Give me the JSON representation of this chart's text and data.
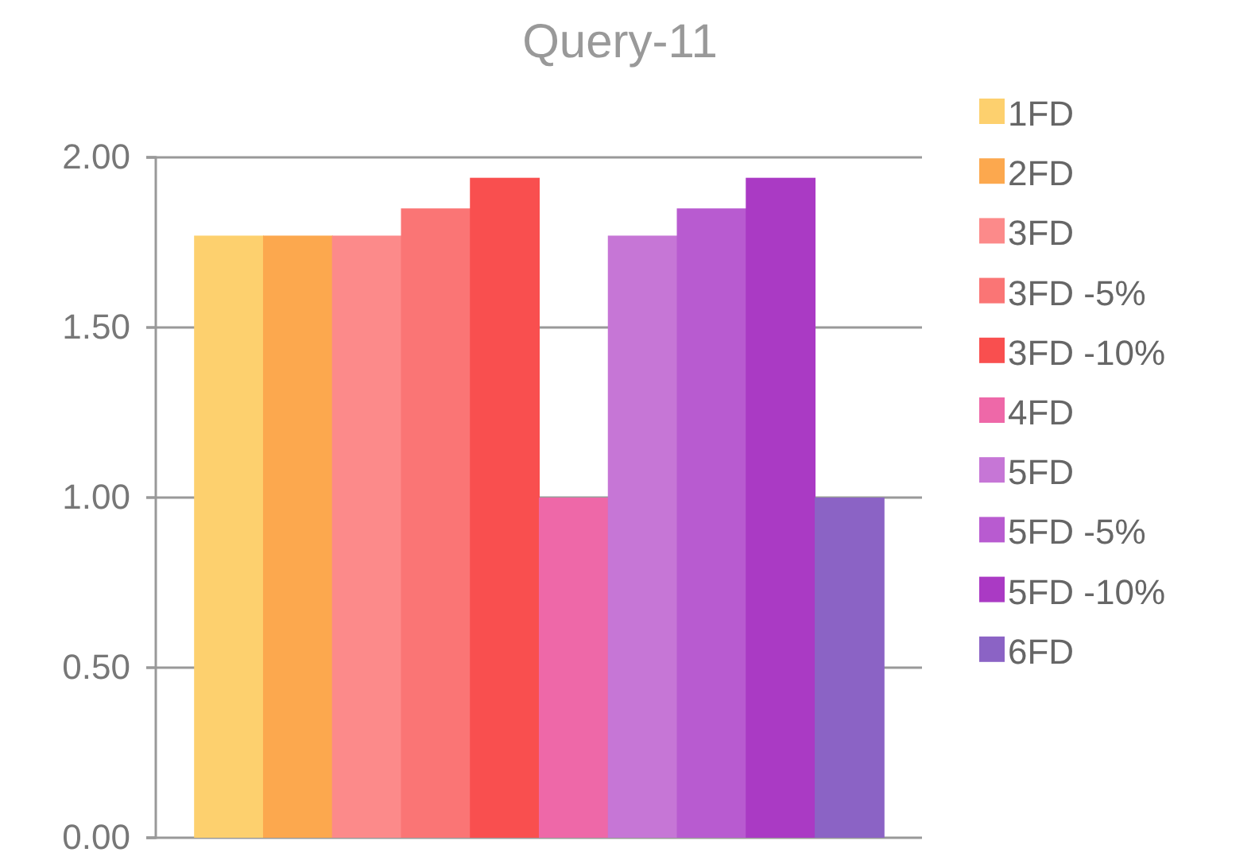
{
  "chart_data": {
    "type": "bar",
    "title": "Query-11",
    "categories": [
      null
    ],
    "series": [
      {
        "name": "1FD",
        "color": "#fdd06e",
        "values": [
          1.77
        ]
      },
      {
        "name": "2FD",
        "color": "#fca84e",
        "values": [
          1.77
        ]
      },
      {
        "name": "3FD",
        "color": "#fc8a8a",
        "values": [
          1.77
        ]
      },
      {
        "name": "3FD -5%",
        "color": "#fa7575",
        "values": [
          1.85
        ]
      },
      {
        "name": "3FD -10%",
        "color": "#f94f4f",
        "values": [
          1.94
        ]
      },
      {
        "name": "4FD",
        "color": "#ee68a8",
        "values": [
          1.0
        ]
      },
      {
        "name": "5FD",
        "color": "#c676d6",
        "values": [
          1.77
        ]
      },
      {
        "name": "5FD -5%",
        "color": "#b85bd0",
        "values": [
          1.85
        ]
      },
      {
        "name": "5FD -10%",
        "color": "#aa3ac4",
        "values": [
          1.94
        ]
      },
      {
        "name": "6FD",
        "color": "#8b63c5",
        "values": [
          1.0
        ]
      }
    ],
    "ylim": [
      0,
      2
    ],
    "yticks": [
      {
        "value": 0,
        "label": "0.00"
      },
      {
        "value": 0.5,
        "label": "0.50"
      },
      {
        "value": 1,
        "label": "1.00"
      },
      {
        "value": 1.5,
        "label": "1.50"
      },
      {
        "value": 2,
        "label": "2.00"
      }
    ],
    "grid": "y",
    "legend": "right"
  }
}
